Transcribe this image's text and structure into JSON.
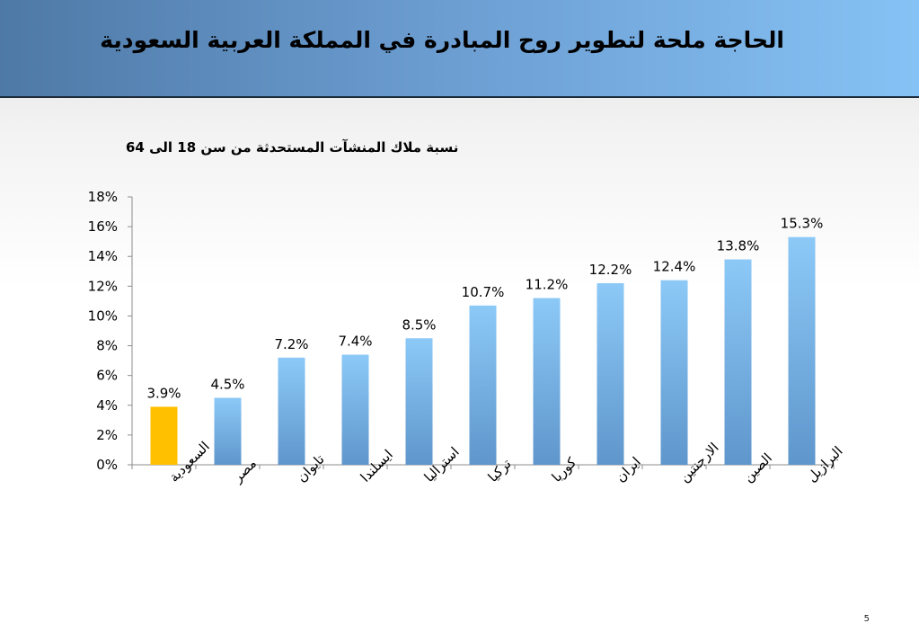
{
  "slide": {
    "title": "الحاجة ملحة لتطوير روح المبادرة في المملكة العربية السعودية",
    "page_number": "5"
  },
  "colors": {
    "highlight": "#FFC000",
    "bar_top": "#8CC9F7",
    "bar_bottom": "#5F96CC"
  },
  "chart_data": {
    "type": "bar",
    "title": "نسبة ملاك المنشآت المستحدثة من سن 18 الى 64",
    "categories": [
      "السعودية",
      "مصر",
      "تايوان",
      "ايسلندا",
      "استراليا",
      "تركيا",
      "كوريا",
      "ايران",
      "الارجنتين",
      "الصين",
      "البرازيل"
    ],
    "values": [
      3.9,
      4.5,
      7.2,
      7.4,
      8.5,
      10.7,
      11.2,
      12.2,
      12.4,
      13.8,
      15.3
    ],
    "data_labels": [
      "3.9%",
      "4.5%",
      "7.2%",
      "7.4%",
      "8.5%",
      "10.7%",
      "11.2%",
      "12.2%",
      "12.4%",
      "13.8%",
      "15.3%"
    ],
    "highlight_index": 0,
    "ylim": [
      0,
      18
    ],
    "yticks": [
      "0%",
      "2%",
      "4%",
      "6%",
      "8%",
      "10%",
      "12%",
      "14%",
      "16%",
      "18%"
    ],
    "xlabel": "",
    "ylabel": "",
    "grid": false
  }
}
